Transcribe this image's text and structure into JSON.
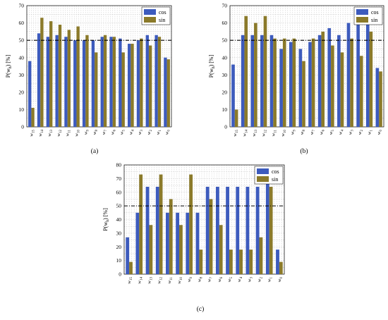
{
  "chart_data": [
    {
      "type": "bar",
      "panel_label": "(a)",
      "ylabel": "P(w_h) [%]",
      "ylim": [
        0,
        70
      ],
      "reference_line": 50,
      "grid": true,
      "legend_position": "top-right",
      "categories": [
        "w_15",
        "w_14",
        "w_13",
        "w_12",
        "w_11",
        "w_10",
        "w_9",
        "w_8",
        "w_7",
        "w_6",
        "w_5",
        "w_4",
        "w_3",
        "w_2",
        "w_1",
        "w_0"
      ],
      "series": [
        {
          "name": "cos",
          "color": "#3d5bbd",
          "values": [
            38,
            54,
            52,
            53,
            52,
            50,
            50,
            50,
            52,
            52,
            51,
            48,
            50,
            53,
            53,
            40
          ]
        },
        {
          "name": "sin",
          "color": "#8b7a2a",
          "values": [
            11,
            63,
            61,
            59,
            56,
            58,
            53,
            43,
            53,
            52,
            43,
            48,
            51,
            47,
            52,
            39
          ]
        }
      ]
    },
    {
      "type": "bar",
      "panel_label": "(b)",
      "ylabel": "P(w_h) [%]",
      "ylim": [
        0,
        70
      ],
      "reference_line": 50,
      "grid": true,
      "legend_position": "top-right",
      "categories": [
        "w_15",
        "w_14",
        "w_13",
        "w_12",
        "w_11",
        "w_10",
        "w_9",
        "w_8",
        "w_7",
        "w_6",
        "w_5",
        "w_4",
        "w_3",
        "w_2",
        "w_1",
        "w_0"
      ],
      "series": [
        {
          "name": "cos",
          "color": "#3d5bbd",
          "values": [
            36,
            53,
            53,
            53,
            53,
            45,
            49,
            45,
            49,
            53,
            57,
            53,
            60,
            61,
            61,
            34
          ]
        },
        {
          "name": "sin",
          "color": "#8b7a2a",
          "values": [
            10,
            64,
            60,
            64,
            51,
            51,
            51,
            38,
            51,
            55,
            47,
            43,
            51,
            41,
            55,
            32
          ]
        }
      ]
    },
    {
      "type": "bar",
      "panel_label": "(c)",
      "ylabel": "P(w_h) [%]",
      "ylim": [
        0,
        80
      ],
      "reference_line": 50,
      "grid": true,
      "legend_position": "top-right",
      "categories": [
        "w_15",
        "w_14",
        "w_13",
        "w_12",
        "w_11",
        "w_10",
        "w_9",
        "w_8",
        "w_7",
        "w_6",
        "w_5",
        "w_4",
        "w_3",
        "w_2",
        "w_1",
        "w_0"
      ],
      "series": [
        {
          "name": "cos",
          "color": "#3d5bbd",
          "values": [
            27,
            45,
            64,
            64,
            45,
            45,
            45,
            45,
            64,
            64,
            64,
            64,
            64,
            64,
            73,
            18
          ]
        },
        {
          "name": "sin",
          "color": "#8b7a2a",
          "values": [
            9,
            73,
            36,
            73,
            55,
            36,
            73,
            18,
            55,
            36,
            18,
            18,
            18,
            27,
            64,
            9
          ]
        }
      ]
    }
  ]
}
